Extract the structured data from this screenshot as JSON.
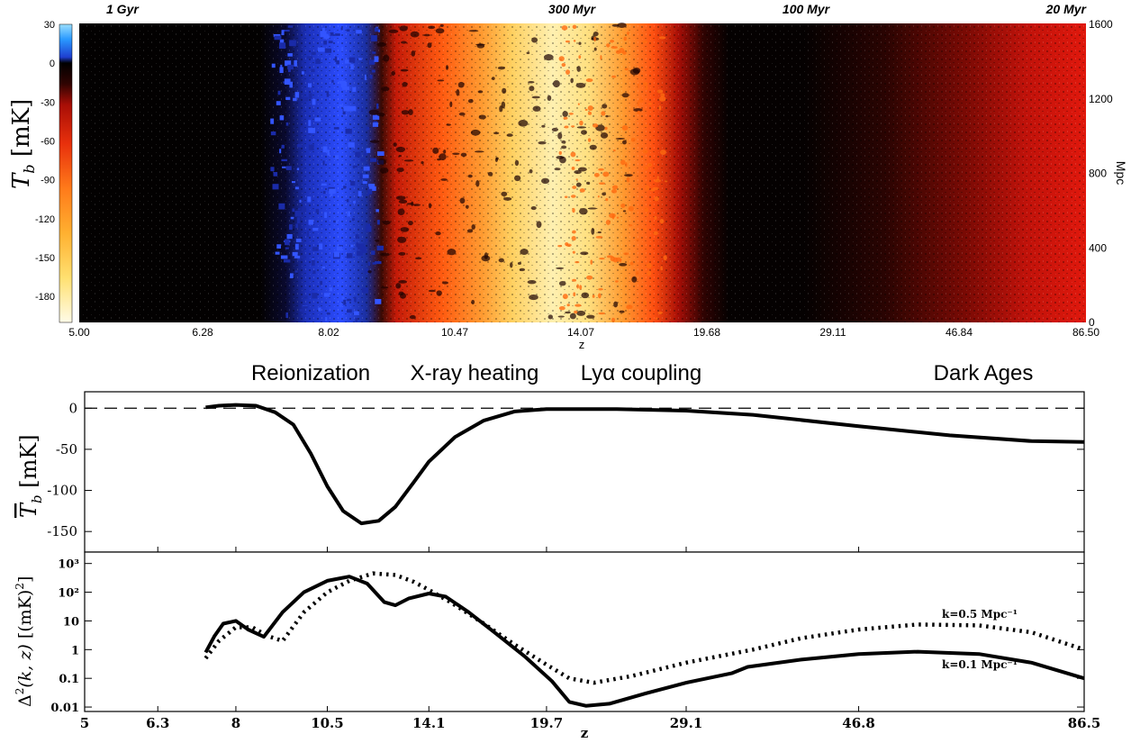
{
  "colors": {
    "hot_white": "#fffde0",
    "yellow": "#ffd75a",
    "orange": "#ff7a1a",
    "red": "#e0140a",
    "dark": "#050202",
    "blue": "#2b4cff",
    "lightblue": "#9adfff"
  },
  "chart_data": [
    {
      "type": "heatmap",
      "title": "",
      "xlabel": "z",
      "x_ticks": [
        "5.00",
        "6.28",
        "8.02",
        "10.47",
        "14.07",
        "19.68",
        "29.11",
        "46.84",
        "86.50"
      ],
      "age_labels": [
        "1 Gyr",
        "300 Myr",
        "100 Myr",
        "20 Myr"
      ],
      "right_axis": {
        "label": "Mpc",
        "ticks": [
          "0",
          "400",
          "800",
          "1200",
          "1600"
        ],
        "range": [
          0,
          1600
        ]
      },
      "colorbar": {
        "label": "T_b [mK]",
        "ticks": [
          "30",
          "0",
          "-30",
          "-60",
          "-90",
          "-120",
          "-150",
          "-180"
        ],
        "range": [
          -200,
          30
        ]
      }
    },
    {
      "type": "line",
      "title": "",
      "ylabel": "T̅_b [mK]",
      "ylim": [
        -175,
        20
      ],
      "yticks": [
        "0",
        "-50",
        "-100",
        "-150"
      ],
      "xticks": [
        "6.3",
        "8",
        "10.5",
        "14.1",
        "19.7",
        "29.1",
        "46.8"
      ],
      "era_labels": [
        "Reionization",
        "X-ray heating",
        "Lyα coupling",
        "Dark Ages"
      ],
      "series": [
        {
          "values": [
            [
              7.3,
              1
            ],
            [
              7.6,
              3
            ],
            [
              8.0,
              4
            ],
            [
              8.5,
              3
            ],
            [
              9.0,
              -5
            ],
            [
              9.5,
              -20
            ],
            [
              10.0,
              -55
            ],
            [
              10.5,
              -95
            ],
            [
              11.0,
              -125
            ],
            [
              11.6,
              -140
            ],
            [
              12.2,
              -137
            ],
            [
              12.8,
              -120
            ],
            [
              13.5,
              -90
            ],
            [
              14.1,
              -65
            ],
            [
              15.2,
              -35
            ],
            [
              16.5,
              -15
            ],
            [
              18.0,
              -4
            ],
            [
              19.7,
              -1
            ],
            [
              24.0,
              -1
            ],
            [
              29.1,
              -3
            ],
            [
              35.0,
              -8
            ],
            [
              46.8,
              -22
            ],
            [
              60.0,
              -33
            ],
            [
              75.0,
              -40
            ],
            [
              86.5,
              -41
            ]
          ]
        }
      ],
      "reference_line": 0
    },
    {
      "type": "line",
      "title": "",
      "xlabel": "z",
      "ylabel": "Δ²(k, z) [(mK)²]",
      "yscale": "log",
      "ylim": [
        0.007,
        2500
      ],
      "yticks": [
        "10³",
        "10²",
        "10",
        "1",
        "0.1",
        "0.01"
      ],
      "xticks": [
        "5",
        "6.3",
        "8",
        "10.5",
        "14.1",
        "19.7",
        "29.1",
        "46.8",
        "86.5"
      ],
      "series": [
        {
          "name": "k=0.1 Mpc⁻¹",
          "style": "solid",
          "values": [
            [
              7.3,
              0.8
            ],
            [
              7.5,
              3
            ],
            [
              7.7,
              8
            ],
            [
              8.0,
              10
            ],
            [
              8.3,
              5
            ],
            [
              8.7,
              2.8
            ],
            [
              9.2,
              20
            ],
            [
              9.8,
              100
            ],
            [
              10.5,
              250
            ],
            [
              11.2,
              350
            ],
            [
              11.8,
              200
            ],
            [
              12.4,
              45
            ],
            [
              12.8,
              35
            ],
            [
              13.3,
              60
            ],
            [
              14.1,
              90
            ],
            [
              14.8,
              70
            ],
            [
              15.8,
              20
            ],
            [
              17.0,
              4
            ],
            [
              18.5,
              0.6
            ],
            [
              20.0,
              0.08
            ],
            [
              21.0,
              0.015
            ],
            [
              22.0,
              0.011
            ],
            [
              23.5,
              0.013
            ],
            [
              26.0,
              0.03
            ],
            [
              29.1,
              0.07
            ],
            [
              33.0,
              0.15
            ],
            [
              34.5,
              0.25
            ],
            [
              40.0,
              0.45
            ],
            [
              46.8,
              0.7
            ],
            [
              55.0,
              0.85
            ],
            [
              65.0,
              0.7
            ],
            [
              75.0,
              0.35
            ],
            [
              86.5,
              0.1
            ]
          ]
        },
        {
          "name": "k=0.5 Mpc⁻¹",
          "style": "dotted",
          "values": [
            [
              7.3,
              0.5
            ],
            [
              7.6,
              2
            ],
            [
              8.0,
              6
            ],
            [
              8.4,
              6
            ],
            [
              8.8,
              3
            ],
            [
              9.2,
              2
            ],
            [
              9.8,
              20
            ],
            [
              10.5,
              100
            ],
            [
              11.2,
              250
            ],
            [
              12.0,
              450
            ],
            [
              12.8,
              400
            ],
            [
              13.5,
              230
            ],
            [
              14.1,
              120
            ],
            [
              15.0,
              45
            ],
            [
              16.5,
              8
            ],
            [
              18.0,
              1.5
            ],
            [
              19.7,
              0.3
            ],
            [
              21.0,
              0.1
            ],
            [
              22.5,
              0.07
            ],
            [
              25.0,
              0.12
            ],
            [
              29.1,
              0.35
            ],
            [
              35.0,
              1
            ],
            [
              40.0,
              2.5
            ],
            [
              46.8,
              5
            ],
            [
              55.0,
              7.5
            ],
            [
              65.0,
              7
            ],
            [
              75.0,
              4
            ],
            [
              86.5,
              1
            ]
          ]
        }
      ]
    }
  ]
}
